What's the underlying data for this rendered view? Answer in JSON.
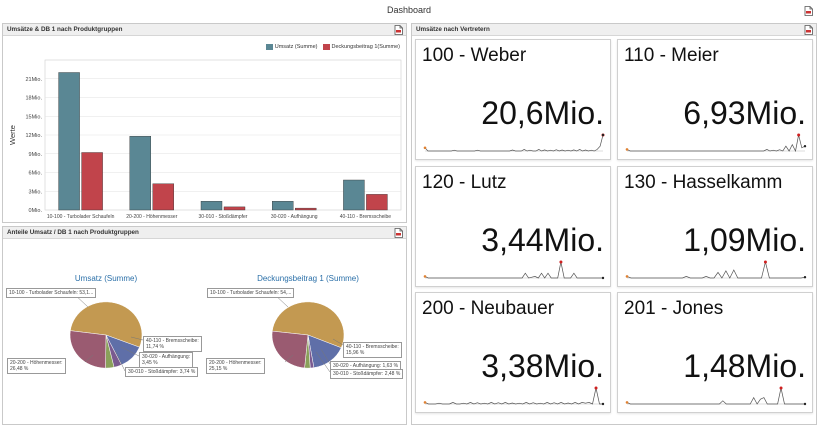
{
  "window": {
    "title": "Dashboard"
  },
  "colors": {
    "umsatz": "#5a8794",
    "db1": "#c1444b",
    "pie_main": "#c39951",
    "pie_mauve": "#9a5b71",
    "pie_blue": "#5f6fa8",
    "pie_green": "#8aa05a",
    "pie_purple": "#7a5a90"
  },
  "icons": {
    "export": "export-pdf-icon"
  },
  "bar_panel": {
    "title": "Umsätze & DB 1 nach Produktgruppen",
    "legend": [
      "Umsatz (Summe)",
      "Deckungsbeitrag 1(Summe)"
    ]
  },
  "pie_panel": {
    "title": "Anteile Umsatz / DB 1 nach Produktgruppen",
    "left_title": "Umsatz (Summe)",
    "right_title": "Deckungsbeitrag 1 (Summe)",
    "left_callouts": [
      "10-100 - Turbolader Schaufeln: 53,1...",
      "40-110 - Bremsscheibe:",
      "11,74 %",
      "30-020 - Aufhängung:",
      "3,45 %",
      "30-010 - Stoßdämpfer: 3,74 %",
      "20-200 - Höhenmesser:",
      "26,48 %"
    ],
    "right_callouts": [
      "10-100 - Turbolader Schaufeln: 54,...",
      "40-110 - Bremsscheibe:",
      "15,96 %",
      "30-020 - Aufhängung: 1,63 %",
      "30-010 - Stoßdämpfer: 2,48 %",
      "20-200 - Höhenmesser:",
      "25,15 %"
    ]
  },
  "reps_panel": {
    "title": "Umsätze nach Vertretern",
    "tiles": [
      {
        "name": "100 - Weber",
        "value": "20,6Mio."
      },
      {
        "name": "110 - Meier",
        "value": "6,93Mio."
      },
      {
        "name": "120 - Lutz",
        "value": "3,44Mio."
      },
      {
        "name": "130 - Hasselkamm",
        "value": "1,09Mio."
      },
      {
        "name": "200 - Neubauer",
        "value": "3,38Mio."
      },
      {
        "name": "201 - Jones",
        "value": "1,48Mio."
      }
    ]
  },
  "chart_data": [
    {
      "type": "bar",
      "categories": [
        "10-100 - Turbolader Schaufeln",
        "20-200 - Höhenmesser",
        "30-010 - Stoßdämpfer",
        "30-020 - Aufhängung",
        "40-110 - Bremsscheibe"
      ],
      "series": [
        {
          "name": "Umsatz (Summe)",
          "values": [
            22.0,
            11.8,
            1.4,
            1.4,
            4.8
          ]
        },
        {
          "name": "Deckungsbeitrag 1(Summe)",
          "values": [
            9.2,
            4.2,
            0.5,
            0.3,
            2.5
          ]
        }
      ],
      "ylabel": "Werte",
      "yticks": [
        "0Mio.",
        "3Mio.",
        "6Mio.",
        "9Mio.",
        "12Mio.",
        "15Mio.",
        "18Mio.",
        "21Mio."
      ],
      "ylim": [
        0,
        24
      ],
      "legend_position": "top-right",
      "grid": true
    },
    {
      "type": "pie",
      "title": "Umsatz (Summe)",
      "labels": [
        "10-100 - Turbolader Schaufeln",
        "20-200 - Höhenmesser",
        "30-010 - Stoßdämpfer",
        "30-020 - Aufhängung",
        "40-110 - Bremsscheibe"
      ],
      "values": [
        53.1,
        26.48,
        3.74,
        3.45,
        11.74
      ]
    },
    {
      "type": "pie",
      "title": "Deckungsbeitrag 1 (Summe)",
      "labels": [
        "10-100 - Turbolader Schaufeln",
        "20-200 - Höhenmesser",
        "30-010 - Stoßdämpfer",
        "30-020 - Aufhängung",
        "40-110 - Bremsscheibe"
      ],
      "values": [
        54.0,
        25.15,
        2.48,
        1.63,
        15.96
      ]
    },
    {
      "type": "line",
      "title": "100 - Weber",
      "values": [
        0.2,
        0,
        0,
        0,
        0,
        0,
        0,
        0,
        0,
        0,
        0.05,
        0,
        0,
        0,
        0,
        0,
        0,
        0,
        0.05,
        0,
        0,
        0,
        0,
        0,
        0,
        0,
        0,
        0,
        0,
        0,
        0.06,
        0,
        0,
        0,
        0.1,
        0,
        0.05,
        0,
        0,
        0.1,
        0,
        0.07,
        0,
        0.05,
        0,
        0.08,
        0,
        0.06,
        0,
        0.05,
        0,
        0.07,
        0,
        0.1,
        0,
        0.06,
        0,
        0.05,
        0,
        0.1,
        0.3,
        1.0
      ]
    },
    {
      "type": "line",
      "title": "110 - Meier",
      "values": [
        0.1,
        0,
        0,
        0,
        0,
        0,
        0,
        0,
        0,
        0,
        0,
        0,
        0,
        0,
        0,
        0,
        0,
        0,
        0,
        0,
        0,
        0,
        0,
        0,
        0,
        0,
        0,
        0,
        0,
        0,
        0,
        0,
        0,
        0,
        0,
        0,
        0,
        0,
        0,
        0,
        0,
        0,
        0,
        0,
        0.1,
        0,
        0.05,
        0,
        0.08,
        0,
        0.3,
        0,
        0.4,
        0,
        1.0,
        0.2,
        0.3
      ]
    },
    {
      "type": "line",
      "title": "120 - Lutz",
      "values": [
        0.1,
        0,
        0,
        0,
        0,
        0,
        0,
        0,
        0,
        0,
        0,
        0,
        0,
        0,
        0,
        0,
        0,
        0,
        0,
        0,
        0,
        0,
        0,
        0,
        0,
        0,
        0,
        0,
        0,
        0,
        0,
        0.3,
        0,
        0.05,
        0.1,
        0,
        0.3,
        0,
        0.3,
        0,
        0,
        0,
        1.0,
        0,
        0,
        0,
        0.3,
        0,
        0,
        0,
        0,
        0,
        0,
        0,
        0,
        0
      ]
    },
    {
      "type": "line",
      "title": "130 - Hasselkamm",
      "values": [
        0.1,
        0,
        0,
        0,
        0,
        0,
        0,
        0,
        0,
        0,
        0,
        0,
        0,
        0,
        0,
        0.1,
        0,
        0,
        0,
        0,
        0.1,
        0,
        0,
        0.35,
        0,
        0.45,
        0,
        0.5,
        0,
        0,
        0,
        0,
        0,
        0,
        0,
        1.0,
        0,
        0,
        0,
        0,
        0,
        0,
        0,
        0,
        0,
        0.05
      ]
    },
    {
      "type": "line",
      "title": "200 - Neubauer",
      "values": [
        0.1,
        0,
        0,
        0,
        0.05,
        0,
        0,
        0,
        0.1,
        0,
        0,
        0.05,
        0,
        0.1,
        0,
        0.08,
        0,
        0.05,
        0,
        0.1,
        0,
        0.08,
        0,
        0.1,
        0,
        0.06,
        0,
        0.05,
        0,
        0.1,
        0,
        0.08,
        0,
        0.05,
        0,
        0.1,
        0,
        0.08,
        0,
        0.1,
        0,
        0.06,
        0,
        0.1,
        0,
        0.1,
        0.05,
        0.1,
        0,
        1.0,
        0,
        0
      ]
    },
    {
      "type": "line",
      "title": "201 - Jones",
      "values": [
        0.1,
        0,
        0,
        0,
        0,
        0,
        0,
        0,
        0,
        0,
        0,
        0,
        0,
        0,
        0,
        0,
        0,
        0,
        0,
        0,
        0,
        0,
        0,
        0,
        0,
        0,
        0,
        0,
        0.2,
        0,
        0,
        0,
        0,
        0,
        0,
        0,
        0,
        0.4,
        0,
        0.3,
        0.4,
        0,
        0,
        0,
        0,
        1.0,
        0,
        0,
        0,
        0,
        0,
        0,
        0
      ]
    }
  ]
}
